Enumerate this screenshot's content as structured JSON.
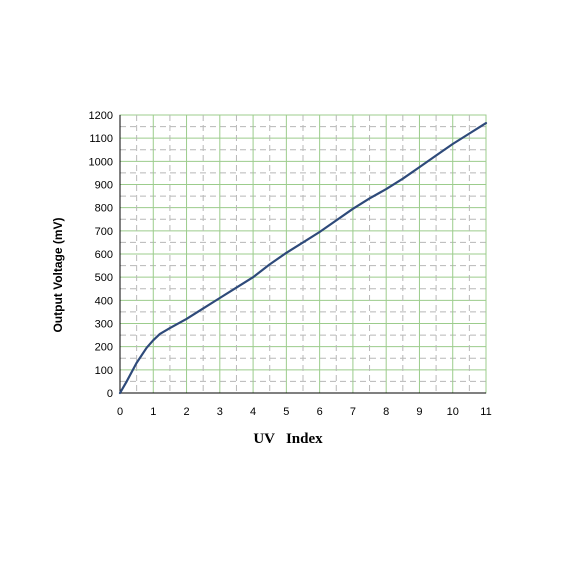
{
  "chart_data": {
    "type": "line",
    "title": "",
    "xlabel": "UV   Index",
    "ylabel": "Output Voltage (mV)",
    "xlim": [
      0,
      11
    ],
    "ylim": [
      0,
      1200
    ],
    "xticks": [
      "0",
      "1",
      "2",
      "3",
      "4",
      "5",
      "6",
      "7",
      "8",
      "9",
      "10",
      "11"
    ],
    "yticks": [
      "0",
      "100",
      "200",
      "300",
      "400",
      "500",
      "600",
      "700",
      "800",
      "900",
      "1000",
      "1100",
      "1200"
    ],
    "grid": true,
    "legend": "none",
    "series": [
      {
        "color": "#2e4a7a",
        "x": [
          0,
          0.2,
          0.5,
          0.8,
          1.0,
          1.2,
          1.5,
          2.0,
          2.5,
          3.0,
          3.5,
          4.0,
          4.5,
          5.0,
          5.5,
          6.0,
          6.5,
          7.0,
          7.5,
          8.0,
          8.5,
          9.0,
          9.5,
          10.0,
          10.5,
          11.0
        ],
        "y": [
          0,
          50,
          130,
          195,
          228,
          255,
          280,
          320,
          365,
          410,
          455,
          500,
          555,
          605,
          650,
          695,
          745,
          795,
          840,
          880,
          925,
          975,
          1025,
          1075,
          1120,
          1165
        ]
      }
    ]
  }
}
